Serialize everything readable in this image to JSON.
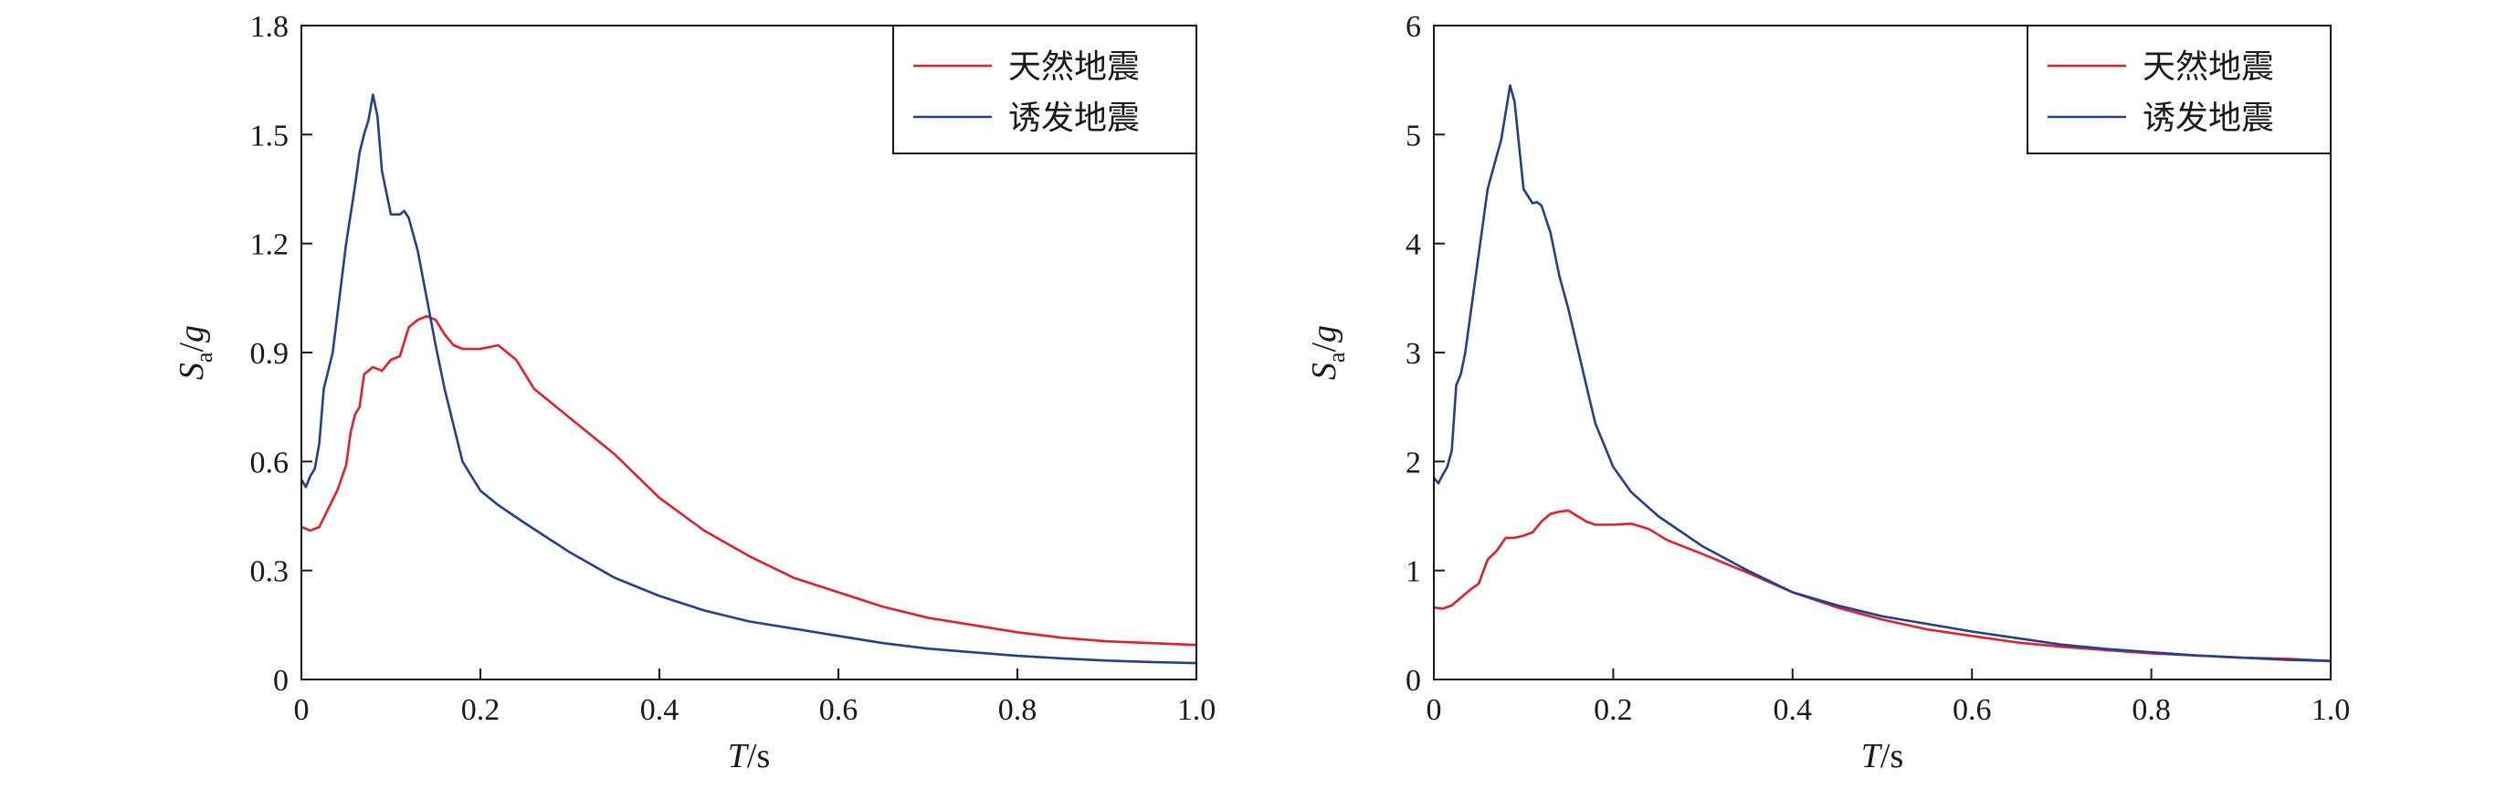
{
  "chart_data": [
    {
      "type": "line",
      "xlabel": "T/s",
      "ylabel": "Sa/g",
      "xlim": [
        0,
        1.0
      ],
      "ylim": [
        0,
        1.8
      ],
      "xticks": [
        0,
        0.2,
        0.4,
        0.6,
        0.8,
        1.0
      ],
      "xtick_labels": [
        "0",
        "0.2",
        "0.4",
        "0.6",
        "0.8",
        "1.0"
      ],
      "yticks": [
        0,
        0.3,
        0.6,
        0.9,
        1.2,
        1.5,
        1.8
      ],
      "ytick_labels": [
        "0",
        "0.3",
        "0.6",
        "0.9",
        "1.2",
        "1.5",
        "1.8"
      ],
      "grid": false,
      "legend_position": "top-right",
      "series": [
        {
          "name": "天然地震",
          "color": "#e0202a",
          "points": [
            [
              0,
              0.42
            ],
            [
              0.01,
              0.41
            ],
            [
              0.02,
              0.42
            ],
            [
              0.03,
              0.47
            ],
            [
              0.04,
              0.52
            ],
            [
              0.05,
              0.59
            ],
            [
              0.055,
              0.68
            ],
            [
              0.06,
              0.73
            ],
            [
              0.065,
              0.75
            ],
            [
              0.07,
              0.84
            ],
            [
              0.08,
              0.86
            ],
            [
              0.09,
              0.85
            ],
            [
              0.1,
              0.88
            ],
            [
              0.11,
              0.89
            ],
            [
              0.12,
              0.97
            ],
            [
              0.13,
              0.99
            ],
            [
              0.14,
              1.0
            ],
            [
              0.15,
              0.99
            ],
            [
              0.16,
              0.95
            ],
            [
              0.17,
              0.92
            ],
            [
              0.18,
              0.91
            ],
            [
              0.2,
              0.91
            ],
            [
              0.22,
              0.92
            ],
            [
              0.24,
              0.88
            ],
            [
              0.26,
              0.8
            ],
            [
              0.3,
              0.72
            ],
            [
              0.35,
              0.62
            ],
            [
              0.4,
              0.5
            ],
            [
              0.45,
              0.41
            ],
            [
              0.5,
              0.34
            ],
            [
              0.55,
              0.28
            ],
            [
              0.6,
              0.24
            ],
            [
              0.65,
              0.2
            ],
            [
              0.7,
              0.17
            ],
            [
              0.75,
              0.15
            ],
            [
              0.8,
              0.13
            ],
            [
              0.85,
              0.115
            ],
            [
              0.9,
              0.105
            ],
            [
              0.95,
              0.1
            ],
            [
              1.0,
              0.095
            ]
          ]
        },
        {
          "name": "诱发地震",
          "color": "#22408f",
          "points": [
            [
              0,
              0.55
            ],
            [
              0.005,
              0.53
            ],
            [
              0.01,
              0.56
            ],
            [
              0.015,
              0.58
            ],
            [
              0.02,
              0.65
            ],
            [
              0.025,
              0.8
            ],
            [
              0.03,
              0.85
            ],
            [
              0.035,
              0.9
            ],
            [
              0.04,
              1.0
            ],
            [
              0.05,
              1.2
            ],
            [
              0.06,
              1.36
            ],
            [
              0.065,
              1.45
            ],
            [
              0.07,
              1.5
            ],
            [
              0.075,
              1.54
            ],
            [
              0.08,
              1.61
            ],
            [
              0.085,
              1.55
            ],
            [
              0.09,
              1.4
            ],
            [
              0.1,
              1.28
            ],
            [
              0.11,
              1.28
            ],
            [
              0.115,
              1.29
            ],
            [
              0.12,
              1.27
            ],
            [
              0.13,
              1.18
            ],
            [
              0.14,
              1.05
            ],
            [
              0.15,
              0.92
            ],
            [
              0.16,
              0.8
            ],
            [
              0.17,
              0.7
            ],
            [
              0.18,
              0.6
            ],
            [
              0.2,
              0.52
            ],
            [
              0.22,
              0.48
            ],
            [
              0.25,
              0.43
            ],
            [
              0.3,
              0.35
            ],
            [
              0.35,
              0.28
            ],
            [
              0.4,
              0.23
            ],
            [
              0.45,
              0.19
            ],
            [
              0.5,
              0.16
            ],
            [
              0.55,
              0.14
            ],
            [
              0.6,
              0.12
            ],
            [
              0.65,
              0.1
            ],
            [
              0.7,
              0.085
            ],
            [
              0.75,
              0.075
            ],
            [
              0.8,
              0.065
            ],
            [
              0.85,
              0.058
            ],
            [
              0.9,
              0.052
            ],
            [
              0.95,
              0.048
            ],
            [
              1.0,
              0.045
            ]
          ]
        }
      ]
    },
    {
      "type": "line",
      "xlabel": "T/s",
      "ylabel": "Sa/g",
      "xlim": [
        0,
        1.0
      ],
      "ylim": [
        0,
        6
      ],
      "xticks": [
        0,
        0.2,
        0.4,
        0.6,
        0.8,
        1.0
      ],
      "xtick_labels": [
        "0",
        "0.2",
        "0.4",
        "0.6",
        "0.8",
        "1.0"
      ],
      "yticks": [
        0,
        1,
        2,
        3,
        4,
        5,
        6
      ],
      "ytick_labels": [
        "0",
        "1",
        "2",
        "3",
        "4",
        "5",
        "6"
      ],
      "grid": false,
      "legend_position": "top-right",
      "series": [
        {
          "name": "天然地震",
          "color": "#e0202a",
          "points": [
            [
              0,
              0.66
            ],
            [
              0.01,
              0.65
            ],
            [
              0.02,
              0.68
            ],
            [
              0.03,
              0.75
            ],
            [
              0.04,
              0.82
            ],
            [
              0.05,
              0.88
            ],
            [
              0.06,
              1.1
            ],
            [
              0.07,
              1.18
            ],
            [
              0.08,
              1.3
            ],
            [
              0.09,
              1.3
            ],
            [
              0.1,
              1.32
            ],
            [
              0.11,
              1.35
            ],
            [
              0.12,
              1.45
            ],
            [
              0.13,
              1.52
            ],
            [
              0.14,
              1.54
            ],
            [
              0.15,
              1.55
            ],
            [
              0.16,
              1.5
            ],
            [
              0.17,
              1.45
            ],
            [
              0.18,
              1.42
            ],
            [
              0.2,
              1.42
            ],
            [
              0.22,
              1.43
            ],
            [
              0.24,
              1.38
            ],
            [
              0.26,
              1.28
            ],
            [
              0.3,
              1.15
            ],
            [
              0.35,
              0.98
            ],
            [
              0.4,
              0.8
            ],
            [
              0.45,
              0.66
            ],
            [
              0.5,
              0.55
            ],
            [
              0.55,
              0.46
            ],
            [
              0.6,
              0.4
            ],
            [
              0.65,
              0.34
            ],
            [
              0.7,
              0.3
            ],
            [
              0.75,
              0.27
            ],
            [
              0.8,
              0.24
            ],
            [
              0.85,
              0.22
            ],
            [
              0.9,
              0.2
            ],
            [
              0.95,
              0.19
            ],
            [
              1.0,
              0.17
            ]
          ]
        },
        {
          "name": "诱发地震",
          "color": "#22408f",
          "points": [
            [
              0,
              1.85
            ],
            [
              0.005,
              1.8
            ],
            [
              0.01,
              1.88
            ],
            [
              0.015,
              1.95
            ],
            [
              0.02,
              2.1
            ],
            [
              0.025,
              2.7
            ],
            [
              0.03,
              2.8
            ],
            [
              0.035,
              3.0
            ],
            [
              0.04,
              3.3
            ],
            [
              0.05,
              3.9
            ],
            [
              0.06,
              4.5
            ],
            [
              0.07,
              4.8
            ],
            [
              0.075,
              4.95
            ],
            [
              0.08,
              5.2
            ],
            [
              0.085,
              5.45
            ],
            [
              0.09,
              5.3
            ],
            [
              0.1,
              4.5
            ],
            [
              0.11,
              4.37
            ],
            [
              0.115,
              4.38
            ],
            [
              0.12,
              4.35
            ],
            [
              0.13,
              4.1
            ],
            [
              0.14,
              3.7
            ],
            [
              0.15,
              3.4
            ],
            [
              0.16,
              3.05
            ],
            [
              0.17,
              2.7
            ],
            [
              0.18,
              2.35
            ],
            [
              0.2,
              1.95
            ],
            [
              0.22,
              1.72
            ],
            [
              0.25,
              1.5
            ],
            [
              0.3,
              1.22
            ],
            [
              0.35,
              1.0
            ],
            [
              0.4,
              0.8
            ],
            [
              0.45,
              0.68
            ],
            [
              0.5,
              0.58
            ],
            [
              0.55,
              0.51
            ],
            [
              0.6,
              0.44
            ],
            [
              0.65,
              0.38
            ],
            [
              0.7,
              0.32
            ],
            [
              0.75,
              0.28
            ],
            [
              0.8,
              0.25
            ],
            [
              0.85,
              0.22
            ],
            [
              0.9,
              0.2
            ],
            [
              0.95,
              0.18
            ],
            [
              1.0,
              0.17
            ]
          ]
        }
      ]
    }
  ]
}
